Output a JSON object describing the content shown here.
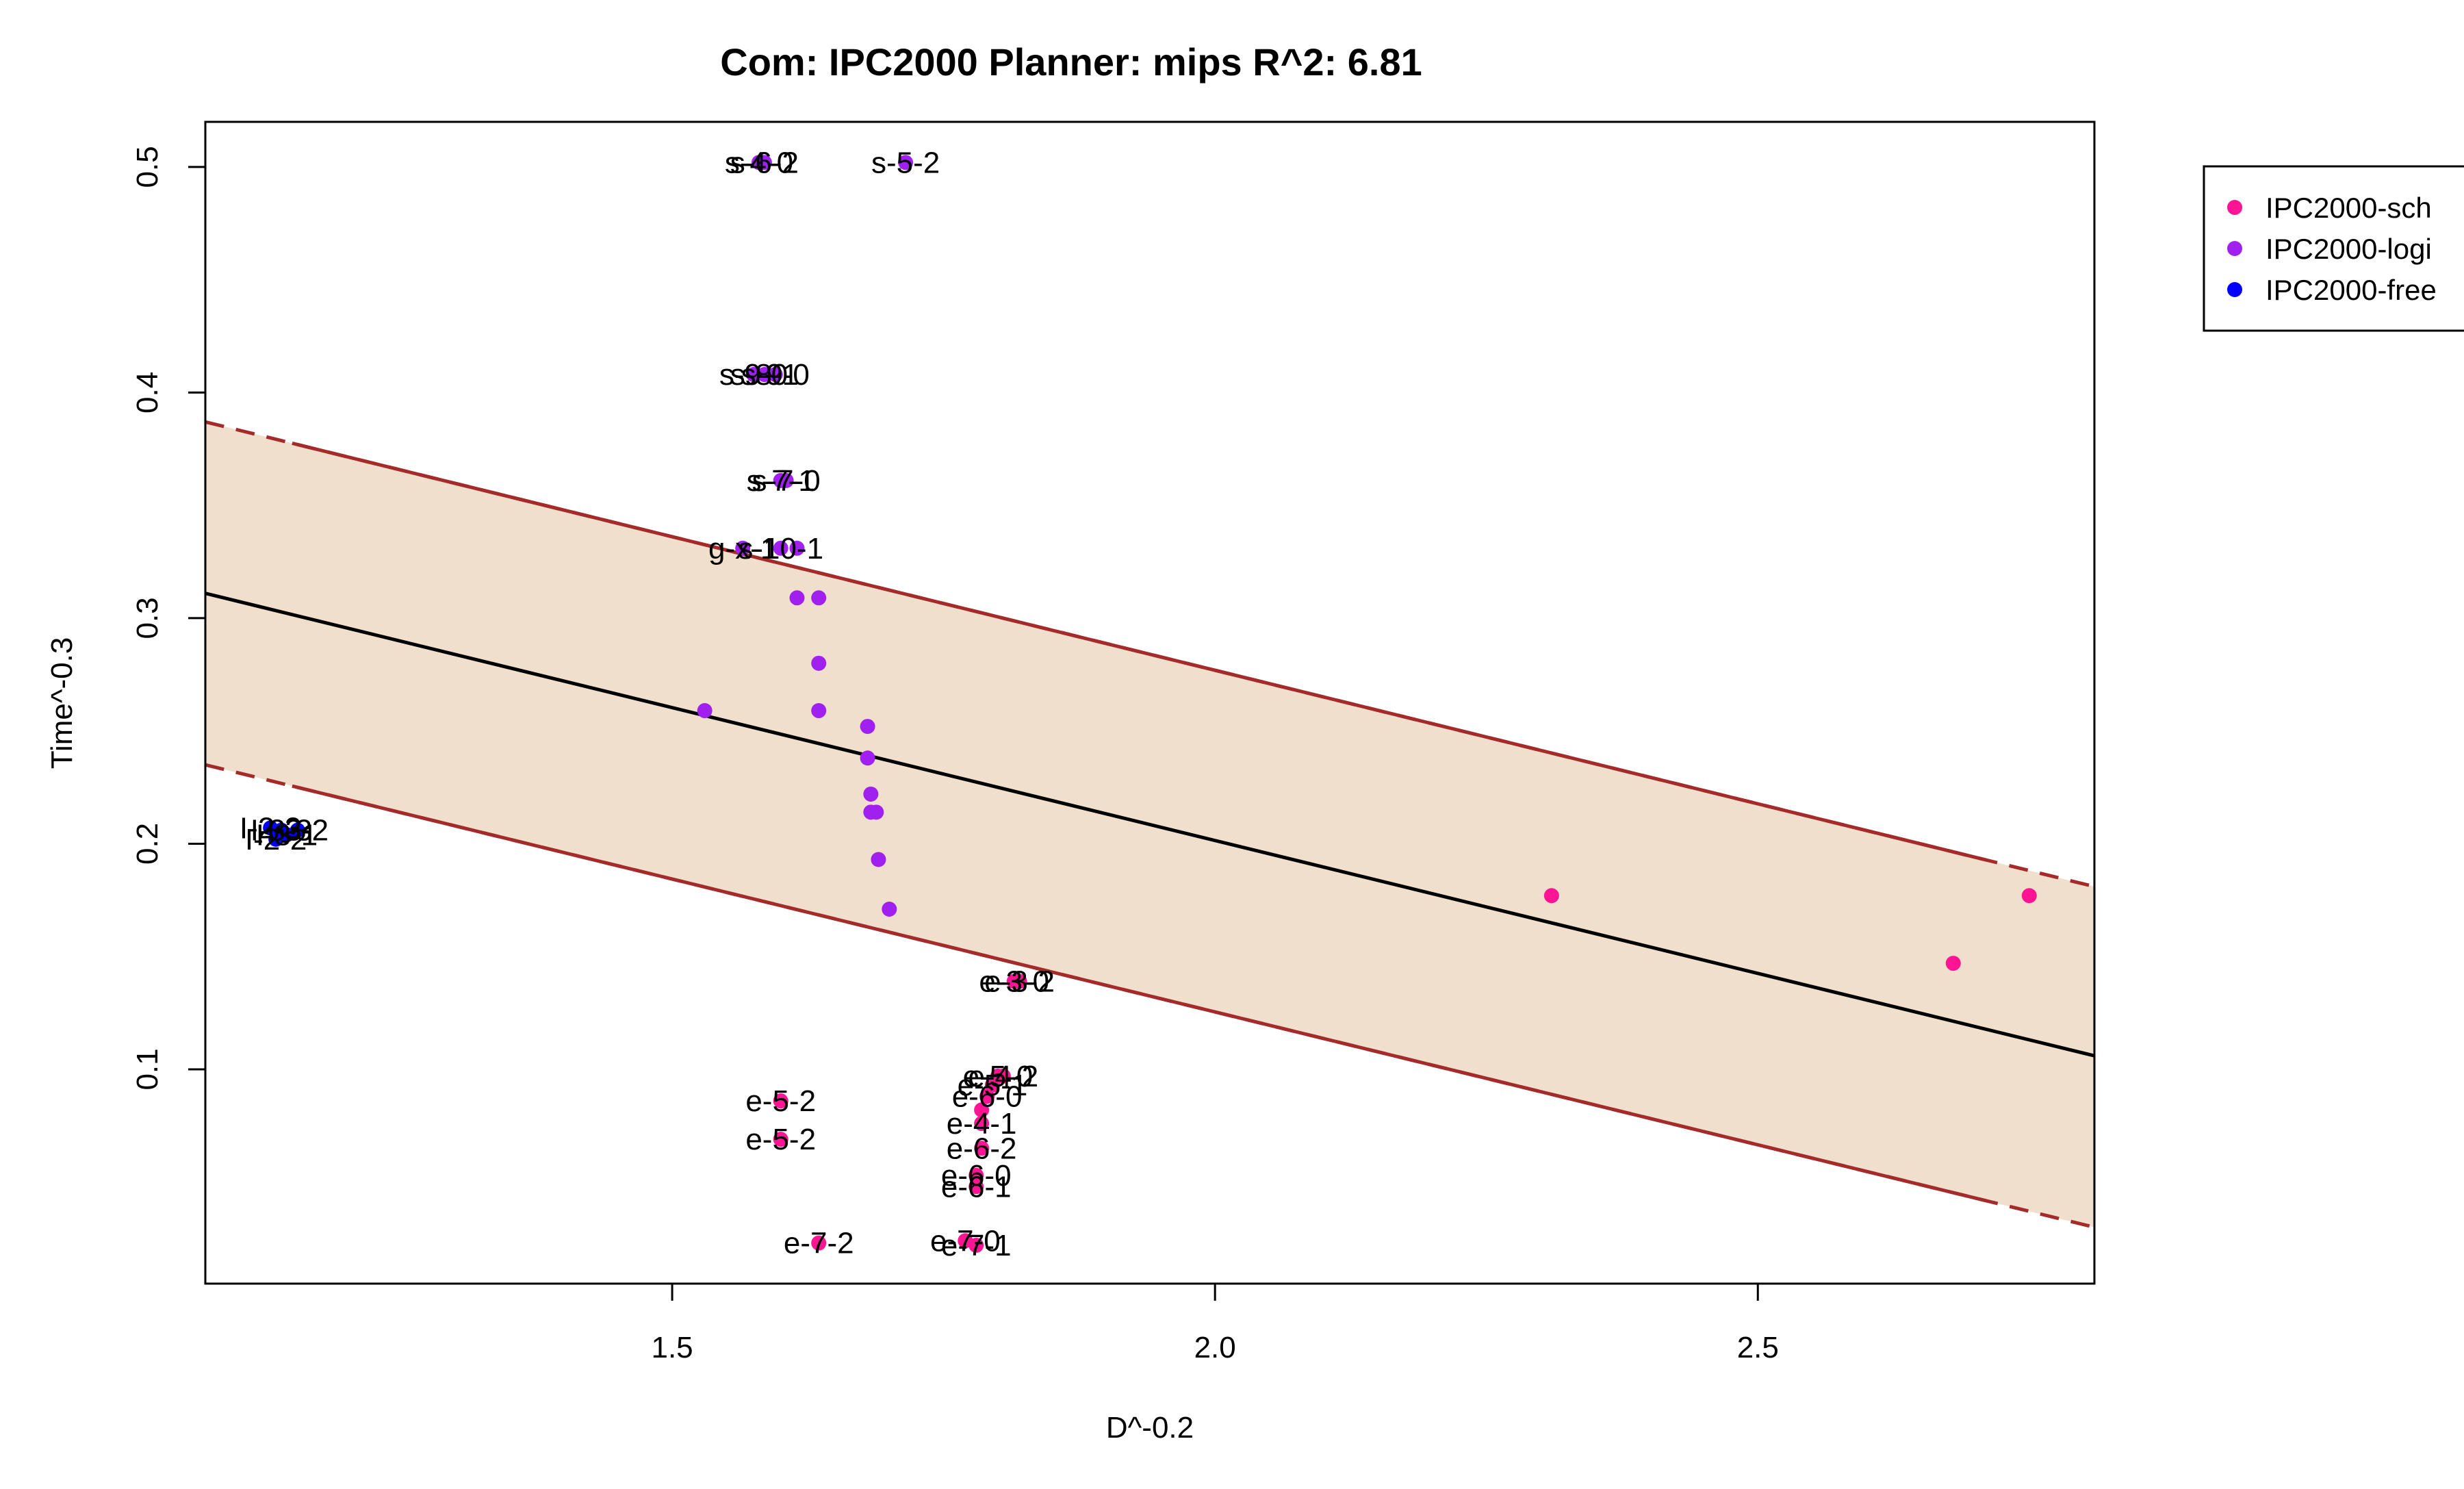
{
  "chart_data": {
    "type": "scatter",
    "title": "Com: IPC2000 Planner: mips R^2: 6.81",
    "xlabel": "D^-0.2",
    "ylabel": "Time^-0.3",
    "xlim": [
      1.07,
      2.81
    ],
    "ylim": [
      0.005,
      0.52
    ],
    "x_ticks": [
      1.5,
      2.0,
      2.5
    ],
    "x_tick_labels": [
      "1.5",
      "2.0",
      "2.5"
    ],
    "y_ticks": [
      0.1,
      0.2,
      0.3,
      0.4,
      0.5
    ],
    "y_tick_labels": [
      "0.1",
      "0.2",
      "0.3",
      "0.4",
      "0.5"
    ],
    "grid": false,
    "legend_position": "top-right outside plot",
    "band_color": "#efdfcc",
    "band_line_color": "#a52a2a",
    "fit_line_color": "#000000",
    "regression": {
      "fit": [
        [
          1.07,
          0.311
        ],
        [
          2.81,
          0.106
        ]
      ],
      "upper": [
        [
          1.07,
          0.387
        ],
        [
          2.81,
          0.181
        ]
      ],
      "lower": [
        [
          1.07,
          0.235
        ],
        [
          2.81,
          0.03
        ]
      ]
    },
    "series": [
      {
        "name": "IPC2000-sch",
        "color": "#ff1493",
        "points": [
          {
            "x": 2.31,
            "y": 0.177,
            "label": ""
          },
          {
            "x": 2.68,
            "y": 0.147,
            "label": ""
          },
          {
            "x": 2.75,
            "y": 0.177,
            "label": ""
          },
          {
            "x": 1.815,
            "y": 0.139,
            "label": "e-3-0"
          },
          {
            "x": 1.82,
            "y": 0.139,
            "label": "e-3-2"
          },
          {
            "x": 1.8,
            "y": 0.097,
            "label": "e-5-0"
          },
          {
            "x": 1.805,
            "y": 0.097,
            "label": "e-4-2"
          },
          {
            "x": 1.795,
            "y": 0.093,
            "label": "e-5-1"
          },
          {
            "x": 1.79,
            "y": 0.088,
            "label": "e-6-0"
          },
          {
            "x": 1.785,
            "y": 0.082,
            "label": ""
          },
          {
            "x": 1.785,
            "y": 0.076,
            "label": "e-4-1"
          },
          {
            "x": 1.785,
            "y": 0.065,
            "label": "e-6-2"
          },
          {
            "x": 1.78,
            "y": 0.053,
            "label": "e-6-0"
          },
          {
            "x": 1.78,
            "y": 0.048,
            "label": "e-6-1"
          },
          {
            "x": 1.6,
            "y": 0.086,
            "label": "e-5-2"
          },
          {
            "x": 1.6,
            "y": 0.069,
            "label": "e-5-2"
          },
          {
            "x": 1.635,
            "y": 0.023,
            "label": "e-7-2"
          },
          {
            "x": 1.77,
            "y": 0.024,
            "label": "e-7-0"
          },
          {
            "x": 1.78,
            "y": 0.022,
            "label": "e-7-1"
          }
        ]
      },
      {
        "name": "IPC2000-logi",
        "color": "#a020f0",
        "points": [
          {
            "x": 1.58,
            "y": 0.502,
            "label": "s-4-0"
          },
          {
            "x": 1.585,
            "y": 0.502,
            "label": "s-6-2"
          },
          {
            "x": 1.715,
            "y": 0.502,
            "label": "s-5-2"
          },
          {
            "x": 1.575,
            "y": 0.408,
            "label": "s-9-0"
          },
          {
            "x": 1.585,
            "y": 0.408,
            "label": "s-8-1"
          },
          {
            "x": 1.595,
            "y": 0.408,
            "label": "s-9-0"
          },
          {
            "x": 1.6,
            "y": 0.361,
            "label": "s-7-1"
          },
          {
            "x": 1.605,
            "y": 0.361,
            "label": "s-7-0"
          },
          {
            "x": 1.565,
            "y": 0.331,
            "label": "g-x-1"
          },
          {
            "x": 1.6,
            "y": 0.331,
            "label": "s-10-1"
          },
          {
            "x": 1.615,
            "y": 0.331,
            "label": ""
          },
          {
            "x": 1.615,
            "y": 0.309,
            "label": ""
          },
          {
            "x": 1.635,
            "y": 0.309,
            "label": ""
          },
          {
            "x": 1.635,
            "y": 0.28,
            "label": ""
          },
          {
            "x": 1.635,
            "y": 0.259,
            "label": ""
          },
          {
            "x": 1.53,
            "y": 0.259,
            "label": ""
          },
          {
            "x": 1.68,
            "y": 0.252,
            "label": ""
          },
          {
            "x": 1.68,
            "y": 0.238,
            "label": ""
          },
          {
            "x": 1.683,
            "y": 0.222,
            "label": ""
          },
          {
            "x": 1.683,
            "y": 0.214,
            "label": ""
          },
          {
            "x": 1.688,
            "y": 0.214,
            "label": ""
          },
          {
            "x": 1.69,
            "y": 0.193,
            "label": ""
          },
          {
            "x": 1.7,
            "y": 0.171,
            "label": ""
          }
        ]
      },
      {
        "name": "IPC2000-free",
        "color": "#0000ff",
        "points": [
          {
            "x": 1.13,
            "y": 0.207,
            "label": "I-2-3"
          },
          {
            "x": 1.14,
            "y": 0.206,
            "label": "I-3-3"
          },
          {
            "x": 1.135,
            "y": 0.202,
            "label": "I-2-2"
          },
          {
            "x": 1.145,
            "y": 0.204,
            "label": "I-3-1"
          },
          {
            "x": 1.155,
            "y": 0.206,
            "label": "I-3-2"
          }
        ]
      }
    ]
  }
}
